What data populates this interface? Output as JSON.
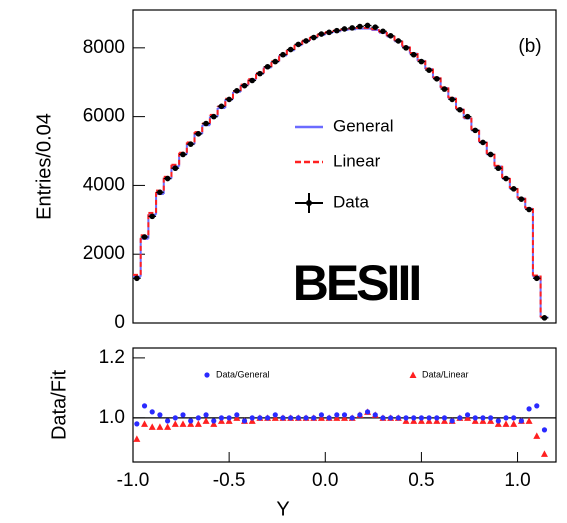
{
  "chart_data": [
    {
      "type": "step",
      "ylabel": "Entries/0.04",
      "annotation": "(b)",
      "logo": "BESIII",
      "xlim": [
        -1.0,
        1.2
      ],
      "ylim": [
        0,
        9100
      ],
      "yticks": [
        0,
        2000,
        4000,
        6000,
        8000
      ],
      "x": [
        -0.98,
        -0.94,
        -0.9,
        -0.86,
        -0.82,
        -0.78,
        -0.74,
        -0.7,
        -0.66,
        -0.62,
        -0.58,
        -0.54,
        -0.5,
        -0.46,
        -0.42,
        -0.38,
        -0.34,
        -0.3,
        -0.26,
        -0.22,
        -0.18,
        -0.14,
        -0.1,
        -0.06,
        -0.02,
        0.02,
        0.06,
        0.1,
        0.14,
        0.18,
        0.22,
        0.26,
        0.3,
        0.34,
        0.38,
        0.42,
        0.46,
        0.5,
        0.54,
        0.58,
        0.62,
        0.66,
        0.7,
        0.74,
        0.78,
        0.82,
        0.86,
        0.9,
        0.94,
        0.98,
        1.02,
        1.06,
        1.1,
        1.14
      ],
      "series": [
        {
          "name": "General",
          "color": "#6b6bff",
          "style": "solid",
          "values": [
            1350,
            2450,
            3150,
            3750,
            4200,
            4550,
            4900,
            5200,
            5500,
            5750,
            6000,
            6250,
            6500,
            6720,
            6920,
            7080,
            7250,
            7430,
            7600,
            7780,
            7930,
            8080,
            8200,
            8300,
            8380,
            8440,
            8480,
            8520,
            8540,
            8560,
            8560,
            8520,
            8440,
            8330,
            8190,
            8020,
            7830,
            7620,
            7380,
            7120,
            6830,
            6530,
            6210,
            5950,
            5600,
            5250,
            4900,
            4550,
            4200,
            3900,
            3620,
            3320,
            1350,
            160
          ]
        },
        {
          "name": "Linear",
          "color": "#ff2020",
          "style": "dashed",
          "values": [
            1400,
            2550,
            3200,
            3850,
            4250,
            4600,
            4950,
            5250,
            5550,
            5800,
            6050,
            6300,
            6520,
            6740,
            6930,
            7090,
            7260,
            7440,
            7610,
            7790,
            7940,
            8090,
            8210,
            8310,
            8400,
            8460,
            8500,
            8540,
            8560,
            8580,
            8580,
            8540,
            8460,
            8350,
            8210,
            8040,
            7850,
            7640,
            7400,
            7140,
            6850,
            6550,
            6230,
            5970,
            5620,
            5270,
            4920,
            4570,
            4220,
            3920,
            3640,
            3340,
            1380,
            170
          ]
        },
        {
          "name": "Data",
          "color": "#000000",
          "style": "points",
          "values": [
            1300,
            2500,
            3100,
            3800,
            4200,
            4500,
            4900,
            5200,
            5500,
            5800,
            6000,
            6300,
            6500,
            6750,
            6900,
            7050,
            7250,
            7450,
            7600,
            7800,
            7950,
            8100,
            8200,
            8300,
            8400,
            8450,
            8500,
            8550,
            8580,
            8620,
            8650,
            8600,
            8480,
            8350,
            8200,
            8000,
            7800,
            7600,
            7350,
            7100,
            6800,
            6500,
            6200,
            6000,
            5600,
            5250,
            4900,
            4500,
            4200,
            3900,
            3600,
            3300,
            1300,
            150
          ]
        }
      ]
    },
    {
      "type": "scatter",
      "ylabel": "Data/Fit",
      "xlabel": "Y",
      "xlim": [
        -1.0,
        1.2
      ],
      "ylim": [
        0.853,
        1.233
      ],
      "xticks": [
        {
          "value": -1.0,
          "label": "-1.0"
        },
        {
          "value": -0.5,
          "label": "-0.5"
        },
        {
          "value": 0.0,
          "label": "0.0"
        },
        {
          "value": 0.5,
          "label": "0.5"
        },
        {
          "value": 1.0,
          "label": "1.0"
        }
      ],
      "yticks": [
        {
          "value": 1.0,
          "label": "1.0"
        },
        {
          "value": 1.2,
          "label": "1.2"
        }
      ],
      "x": [
        -0.98,
        -0.94,
        -0.9,
        -0.86,
        -0.82,
        -0.78,
        -0.74,
        -0.7,
        -0.66,
        -0.62,
        -0.58,
        -0.54,
        -0.5,
        -0.46,
        -0.42,
        -0.38,
        -0.34,
        -0.3,
        -0.26,
        -0.22,
        -0.18,
        -0.14,
        -0.1,
        -0.06,
        -0.02,
        0.02,
        0.06,
        0.1,
        0.14,
        0.18,
        0.22,
        0.26,
        0.3,
        0.34,
        0.38,
        0.42,
        0.46,
        0.5,
        0.54,
        0.58,
        0.62,
        0.66,
        0.7,
        0.74,
        0.78,
        0.82,
        0.86,
        0.9,
        0.94,
        0.98,
        1.02,
        1.06,
        1.1,
        1.14
      ],
      "series": [
        {
          "name": "Data/Linear",
          "color": "#ff2020",
          "marker": "triangle",
          "values": [
            0.93,
            0.98,
            0.97,
            0.97,
            0.97,
            0.98,
            0.98,
            0.98,
            0.98,
            0.99,
            0.98,
            0.99,
            0.99,
            1.0,
            0.99,
            0.99,
            1.0,
            1.0,
            1.0,
            1.0,
            1.0,
            1.0,
            1.0,
            1.0,
            1.0,
            1.0,
            1.0,
            1.0,
            1.0,
            1.01,
            1.02,
            1.01,
            1.0,
            1.0,
            1.0,
            0.99,
            0.99,
            0.99,
            0.99,
            0.99,
            0.99,
            0.99,
            1.0,
            1.0,
            0.99,
            0.99,
            0.99,
            0.98,
            0.98,
            0.98,
            0.99,
            0.99,
            0.94,
            0.88
          ]
        },
        {
          "name": "Data/General",
          "color": "#2a2aff",
          "marker": "circle",
          "values": [
            0.98,
            1.04,
            1.02,
            1.01,
            0.99,
            1.0,
            1.01,
            0.99,
            1.0,
            1.01,
            0.99,
            1.0,
            1.0,
            1.01,
            0.99,
            1.0,
            1.0,
            1.0,
            1.01,
            1.0,
            1.0,
            1.0,
            1.0,
            1.0,
            1.01,
            1.0,
            1.01,
            1.01,
            1.0,
            1.01,
            1.02,
            1.01,
            1.0,
            1.0,
            1.0,
            1.0,
            1.0,
            1.0,
            1.0,
            1.0,
            1.0,
            0.99,
            1.0,
            1.01,
            1.0,
            1.0,
            1.0,
            0.99,
            1.0,
            1.0,
            0.99,
            1.03,
            1.04,
            0.96
          ]
        }
      ]
    }
  ]
}
